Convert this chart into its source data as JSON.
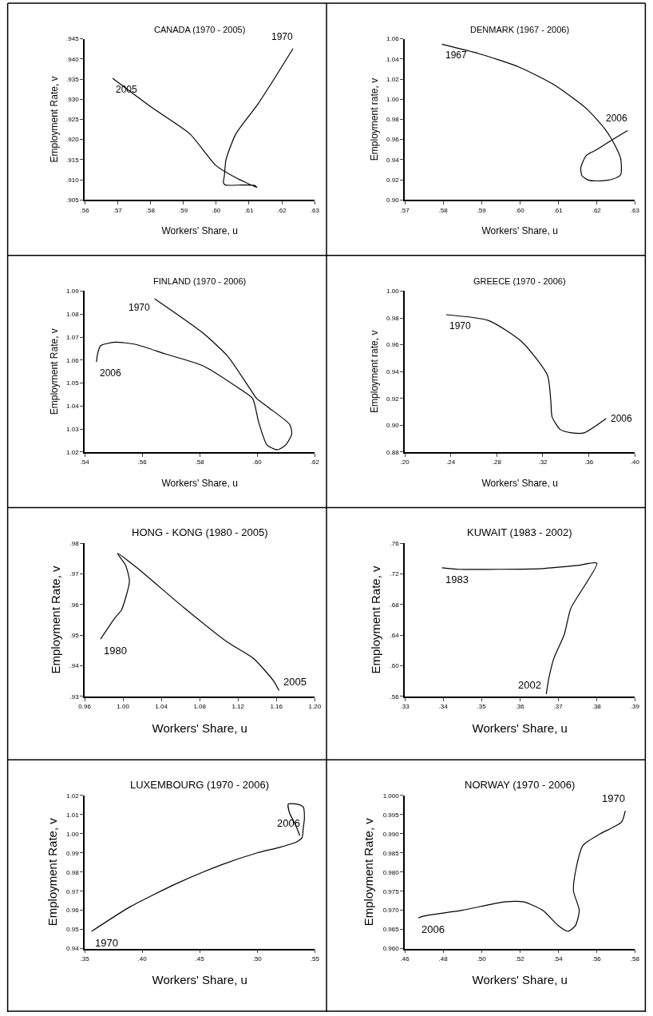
{
  "chart_data": [
    {
      "type": "line",
      "title": "CANADA (1970 - 2005)",
      "xlabel": "Workers' Share, u",
      "ylabel": "Employment Rate, v",
      "xlim": [
        0.56,
        0.63
      ],
      "xticks": [
        {
          "value": 0.56,
          "label": ".56"
        },
        {
          "value": 0.57,
          "label": ".57"
        },
        {
          "value": 0.58,
          "label": ".58"
        },
        {
          "value": 0.59,
          "label": ".59"
        },
        {
          "value": 0.6,
          "label": ".60"
        },
        {
          "value": 0.61,
          "label": ".61"
        },
        {
          "value": 0.62,
          "label": ".62"
        },
        {
          "value": 0.63,
          "label": ".63"
        }
      ],
      "ylim": [
        0.905,
        0.945
      ],
      "yticks": [
        {
          "value": 0.905,
          "label": ".905"
        },
        {
          "value": 0.91,
          "label": ".910"
        },
        {
          "value": 0.915,
          "label": ".915"
        },
        {
          "value": 0.92,
          "label": ".920"
        },
        {
          "value": 0.925,
          "label": ".925"
        },
        {
          "value": 0.93,
          "label": ".930"
        },
        {
          "value": 0.935,
          "label": ".935"
        },
        {
          "value": 0.94,
          "label": ".940"
        },
        {
          "value": 0.945,
          "label": ".945"
        }
      ],
      "series": [
        {
          "color": "#000000",
          "x": [
            0.6234,
            0.618,
            0.6127,
            0.606,
            0.603,
            0.6025,
            0.6022,
            0.6028,
            0.608,
            0.6117,
            0.6124,
            0.606,
            0.6,
            0.592,
            0.5805,
            0.5685
          ],
          "values": [
            0.9426,
            0.9355,
            0.9288,
            0.9214,
            0.915,
            0.911,
            0.9093,
            0.9087,
            0.9087,
            0.9086,
            0.9081,
            0.9105,
            0.9135,
            0.9214,
            0.9279,
            0.9352
          ]
        }
      ],
      "annotations": [
        {
          "text": "1970",
          "x": 0.6234,
          "y": 0.9426
        },
        {
          "text": "2005",
          "x": 0.5685,
          "y": 0.9352
        }
      ]
    },
    {
      "type": "line",
      "title": "DENMARK (1967 - 2006)",
      "xlabel": "Workers' Share, u",
      "ylabel": "Employment rate, v",
      "xlim": [
        0.57,
        0.63
      ],
      "xticks": [
        {
          "value": 0.57,
          "label": ".57"
        },
        {
          "value": 0.58,
          "label": ".58"
        },
        {
          "value": 0.59,
          "label": ".59"
        },
        {
          "value": 0.6,
          "label": ".60"
        },
        {
          "value": 0.61,
          "label": ".61"
        },
        {
          "value": 0.62,
          "label": ".62"
        },
        {
          "value": 0.63,
          "label": ".63"
        }
      ],
      "ylim": [
        0.9,
        1.06
      ],
      "yticks": [
        {
          "value": 0.9,
          "label": "0.90"
        },
        {
          "value": 0.92,
          "label": "0.92"
        },
        {
          "value": 0.94,
          "label": "0.94"
        },
        {
          "value": 0.96,
          "label": "0.96"
        },
        {
          "value": 0.98,
          "label": "0.98"
        },
        {
          "value": 1.0,
          "label": "1.00"
        },
        {
          "value": 1.02,
          "label": "1.02"
        },
        {
          "value": 1.04,
          "label": "1.04"
        },
        {
          "value": 1.06,
          "label": "1.06"
        }
      ],
      "series": [
        {
          "color": "#000000",
          "x": [
            0.5797,
            0.5894,
            0.5998,
            0.6089,
            0.6173,
            0.6222,
            0.6246,
            0.6263,
            0.6263,
            0.6242,
            0.6213,
            0.618,
            0.6162,
            0.6159,
            0.6173,
            0.6201,
            0.6242,
            0.6281
          ],
          "values": [
            1.0547,
            1.0453,
            1.032,
            1.0145,
            0.991,
            0.9704,
            0.9557,
            0.941,
            0.925,
            0.9206,
            0.919,
            0.9195,
            0.924,
            0.932,
            0.944,
            0.95,
            0.96,
            0.9689
          ]
        }
      ],
      "annotations": [
        {
          "text": "1967",
          "x": 0.5797,
          "y": 1.0547
        },
        {
          "text": "2006",
          "x": 0.6281,
          "y": 0.9689
        }
      ]
    },
    {
      "type": "line",
      "title": "FINLAND (1970 - 2006)",
      "xlabel": "Workers' Share, u",
      "ylabel": "Employment Rate, v",
      "xlim": [
        0.54,
        0.62
      ],
      "xticks": [
        {
          "value": 0.54,
          "label": ".54"
        },
        {
          "value": 0.56,
          "label": ".56"
        },
        {
          "value": 0.58,
          "label": ".58"
        },
        {
          "value": 0.6,
          "label": ".60"
        },
        {
          "value": 0.62,
          "label": ".62"
        }
      ],
      "ylim": [
        1.02,
        1.09
      ],
      "yticks": [
        {
          "value": 1.02,
          "label": "1.02"
        },
        {
          "value": 1.03,
          "label": "1.03"
        },
        {
          "value": 1.04,
          "label": "1.04"
        },
        {
          "value": 1.05,
          "label": "1.05"
        },
        {
          "value": 1.06,
          "label": "1.06"
        },
        {
          "value": 1.07,
          "label": "1.07"
        },
        {
          "value": 1.08,
          "label": "1.08"
        },
        {
          "value": 1.09,
          "label": "1.09"
        }
      ],
      "series": [
        {
          "color": "#000000",
          "x": [
            0.5643,
            0.581,
            0.5897,
            0.5976,
            0.5998,
            0.6041,
            0.6113,
            0.612,
            0.6099,
            0.607,
            0.6034,
            0.6005,
            0.5984,
            0.594,
            0.581,
            0.568,
            0.5578,
            0.5506,
            0.5455,
            0.5445,
            0.5441
          ],
          "values": [
            1.0867,
            1.0719,
            1.0617,
            1.0473,
            1.0433,
            1.0392,
            1.032,
            1.0278,
            1.0231,
            1.021,
            1.0231,
            1.033,
            1.0433,
            1.0474,
            1.0576,
            1.0627,
            1.0668,
            1.0678,
            1.0662,
            1.0627,
            1.0592
          ]
        }
      ],
      "annotations": [
        {
          "text": "1970",
          "x": 0.5643,
          "y": 1.0867
        },
        {
          "text": "2006",
          "x": 0.5441,
          "y": 1.0592
        }
      ]
    },
    {
      "type": "line",
      "title": "GREECE (1970 - 2006)",
      "xlabel": "Workers' Share, u",
      "ylabel": "Employment rate, v",
      "xlim": [
        0.2,
        0.4
      ],
      "xticks": [
        {
          "value": 0.2,
          "label": ".20"
        },
        {
          "value": 0.24,
          "label": ".24"
        },
        {
          "value": 0.28,
          "label": ".28"
        },
        {
          "value": 0.32,
          "label": ".32"
        },
        {
          "value": 0.36,
          "label": ".36"
        },
        {
          "value": 0.4,
          "label": ".40"
        }
      ],
      "ylim": [
        0.88,
        1.0
      ],
      "yticks": [
        {
          "value": 0.88,
          "label": "0.88"
        },
        {
          "value": 0.9,
          "label": "0.90"
        },
        {
          "value": 0.92,
          "label": "0.92"
        },
        {
          "value": 0.94,
          "label": "0.94"
        },
        {
          "value": 0.96,
          "label": "0.96"
        },
        {
          "value": 0.98,
          "label": "0.98"
        },
        {
          "value": 1.0,
          "label": "1.00"
        }
      ],
      "series": [
        {
          "color": "#000000",
          "x": [
            0.236,
            0.273,
            0.302,
            0.324,
            0.327,
            0.328,
            0.335,
            0.345,
            0.356,
            0.375
          ],
          "values": [
            0.9824,
            0.978,
            0.962,
            0.9373,
            0.9174,
            0.9064,
            0.8969,
            0.8944,
            0.8944,
            0.905
          ]
        }
      ],
      "annotations": [
        {
          "text": "1970",
          "x": 0.236,
          "y": 0.9824
        },
        {
          "text": "2006",
          "x": 0.375,
          "y": 0.905
        }
      ]
    },
    {
      "type": "line",
      "title": "HONG - KONG (1980 - 2005)",
      "xlabel": "Workers' Share, u",
      "ylabel": "Employment Rate, v",
      "xlim": [
        0.96,
        1.2
      ],
      "xticks": [
        {
          "value": 0.96,
          "label": "0.96"
        },
        {
          "value": 1.0,
          "label": "1.00"
        },
        {
          "value": 1.04,
          "label": "1.04"
        },
        {
          "value": 1.08,
          "label": "1.08"
        },
        {
          "value": 1.12,
          "label": "1.12"
        },
        {
          "value": 1.16,
          "label": "1.16"
        },
        {
          "value": 1.2,
          "label": "1.20"
        }
      ],
      "ylim": [
        0.93,
        0.98
      ],
      "yticks": [
        {
          "value": 0.93,
          "label": ".93"
        },
        {
          "value": 0.94,
          "label": ".94"
        },
        {
          "value": 0.95,
          "label": ".95"
        },
        {
          "value": 0.96,
          "label": ".96"
        },
        {
          "value": 0.97,
          "label": ".97"
        },
        {
          "value": 0.98,
          "label": ".98"
        }
      ],
      "series": [
        {
          "color": "#000000",
          "x": [
            0.9766,
            0.992,
            0.9984,
            1.0067,
            1.0026,
            0.9942,
            1.0137,
            1.0638,
            1.1094,
            1.136,
            1.1574,
            1.1627
          ],
          "values": [
            0.9487,
            0.9558,
            0.9582,
            0.9676,
            0.9729,
            0.9767,
            0.9722,
            0.9589,
            0.9476,
            0.9424,
            0.9349,
            0.9319
          ]
        }
      ],
      "annotations": [
        {
          "text": "1980",
          "x": 0.9766,
          "y": 0.9487
        },
        {
          "text": "2005",
          "x": 1.1627,
          "y": 0.9319
        }
      ]
    },
    {
      "type": "line",
      "title": "KUWAIT (1983 - 2002)",
      "xlabel": "Workers' Share, u",
      "ylabel": "Employment Rate, v",
      "xlim": [
        0.33,
        0.39
      ],
      "xticks": [
        {
          "value": 0.33,
          "label": ".33"
        },
        {
          "value": 0.34,
          "label": ".34"
        },
        {
          "value": 0.35,
          "label": ".35"
        },
        {
          "value": 0.36,
          "label": ".36"
        },
        {
          "value": 0.37,
          "label": ".37"
        },
        {
          "value": 0.38,
          "label": ".38"
        },
        {
          "value": 0.39,
          "label": ".39"
        }
      ],
      "ylim": [
        0.56,
        0.76
      ],
      "yticks": [
        {
          "value": 0.56,
          "label": ".56"
        },
        {
          "value": 0.6,
          "label": ".60"
        },
        {
          "value": 0.64,
          "label": ".64"
        },
        {
          "value": 0.68,
          "label": ".68"
        },
        {
          "value": 0.72,
          "label": ".72"
        },
        {
          "value": 0.76,
          "label": ".76"
        }
      ],
      "series": [
        {
          "color": "#000000",
          "x": [
            0.3397,
            0.3442,
            0.3658,
            0.375,
            0.3801,
            0.3733,
            0.3716,
            0.3689,
            0.3675,
            0.3669
          ],
          "values": [
            0.728,
            0.726,
            0.727,
            0.731,
            0.734,
            0.675,
            0.641,
            0.61,
            0.582,
            0.563
          ]
        }
      ],
      "annotations": [
        {
          "text": "1983",
          "x": 0.3397,
          "y": 0.728
        },
        {
          "text": "2002",
          "x": 0.3669,
          "y": 0.563
        }
      ]
    },
    {
      "type": "line",
      "title": "LUXEMBOURG (1970 - 2006)",
      "xlabel": "Workers' Share, u",
      "ylabel": "Employment Rate, v",
      "xlim": [
        0.35,
        0.55
      ],
      "xticks": [
        {
          "value": 0.35,
          "label": ".35"
        },
        {
          "value": 0.4,
          "label": ".40"
        },
        {
          "value": 0.45,
          "label": ".45"
        },
        {
          "value": 0.5,
          "label": ".50"
        },
        {
          "value": 0.55,
          "label": ".55"
        }
      ],
      "ylim": [
        0.94,
        1.02
      ],
      "yticks": [
        {
          "value": 0.94,
          "label": "0.94"
        },
        {
          "value": 0.95,
          "label": "0.95"
        },
        {
          "value": 0.96,
          "label": "0.96"
        },
        {
          "value": 0.97,
          "label": "0.97"
        },
        {
          "value": 0.98,
          "label": "0.98"
        },
        {
          "value": 0.99,
          "label": "0.99"
        },
        {
          "value": 1.0,
          "label": "1.00"
        },
        {
          "value": 1.01,
          "label": "1.01"
        },
        {
          "value": 1.02,
          "label": "1.02"
        }
      ],
      "series": [
        {
          "color": "#000000",
          "x": [
            0.356,
            0.39,
            0.43,
            0.47,
            0.5,
            0.52,
            0.535,
            0.539,
            0.54,
            0.541,
            0.54,
            0.534,
            0.527,
            0.528,
            0.533,
            0.537
          ],
          "values": [
            0.949,
            0.962,
            0.974,
            0.984,
            0.99,
            0.993,
            0.996,
            0.998,
            1.003,
            1.008,
            1.014,
            1.0155,
            1.0155,
            1.011,
            1.005,
            0.999
          ]
        }
      ],
      "annotations": [
        {
          "text": "1970",
          "x": 0.356,
          "y": 0.949
        },
        {
          "text": "2006",
          "x": 0.537,
          "y": 0.999
        }
      ]
    },
    {
      "type": "line",
      "title": "NORWAY (1970 - 2006)",
      "xlabel": "Workers' Share, u",
      "ylabel": "Employment Rate, v",
      "xlim": [
        0.46,
        0.58
      ],
      "xticks": [
        {
          "value": 0.46,
          "label": ".46"
        },
        {
          "value": 0.48,
          "label": ".48"
        },
        {
          "value": 0.5,
          "label": ".50"
        },
        {
          "value": 0.52,
          "label": ".52"
        },
        {
          "value": 0.54,
          "label": ".54"
        },
        {
          "value": 0.56,
          "label": ".56"
        },
        {
          "value": 0.58,
          "label": ".58"
        }
      ],
      "ylim": [
        0.96,
        1.0
      ],
      "yticks": [
        {
          "value": 0.96,
          "label": "0.960"
        },
        {
          "value": 0.965,
          "label": "0.965"
        },
        {
          "value": 0.97,
          "label": "0.970"
        },
        {
          "value": 0.975,
          "label": "0.975"
        },
        {
          "value": 0.98,
          "label": "0.980"
        },
        {
          "value": 0.985,
          "label": "0.985"
        },
        {
          "value": 0.99,
          "label": "0.990"
        },
        {
          "value": 0.995,
          "label": "0.995"
        },
        {
          "value": 1.0,
          "label": "1.000"
        }
      ],
      "series": [
        {
          "color": "#000000",
          "x": [
            0.575,
            0.573,
            0.562,
            0.553,
            0.549,
            0.548,
            0.551,
            0.549,
            0.545,
            0.54,
            0.532,
            0.522,
            0.512,
            0.49,
            0.47,
            0.467
          ],
          "values": [
            0.996,
            0.993,
            0.99,
            0.987,
            0.98,
            0.975,
            0.97,
            0.966,
            0.9645,
            0.966,
            0.97,
            0.9722,
            0.9722,
            0.97,
            0.9685,
            0.968
          ]
        }
      ],
      "annotations": [
        {
          "text": "1970",
          "x": 0.575,
          "y": 0.996
        },
        {
          "text": "2006",
          "x": 0.467,
          "y": 0.968
        }
      ]
    }
  ]
}
